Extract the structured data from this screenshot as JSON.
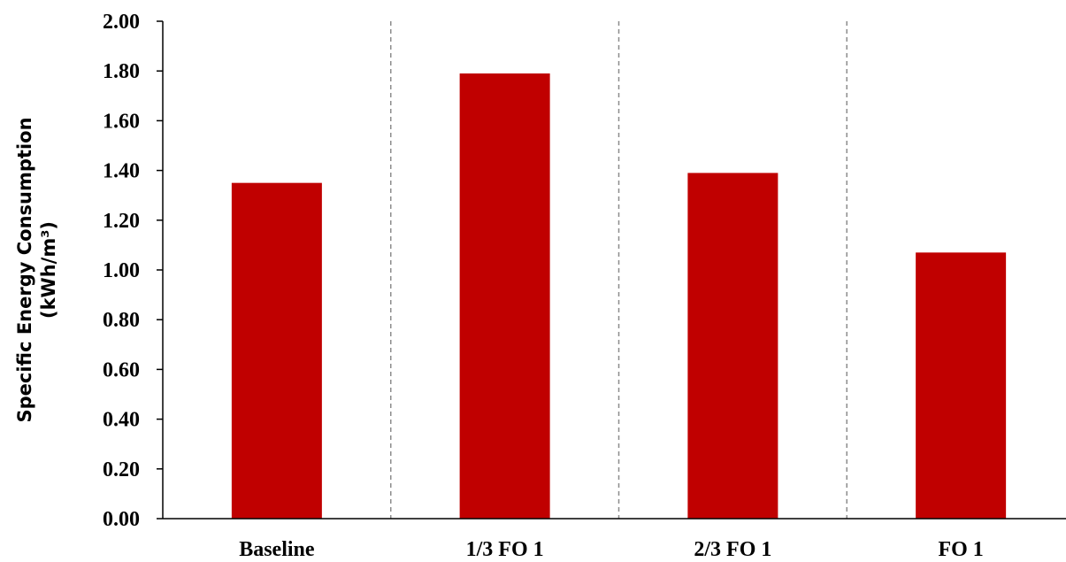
{
  "chart_data": {
    "type": "bar",
    "categories": [
      "Baseline",
      "1/3 FO 1",
      "2/3 FO 1",
      "FO 1"
    ],
    "values": [
      1.35,
      1.79,
      1.39,
      1.07
    ],
    "xlabel": "",
    "ylabel_line1": "Specific Energy Consumption",
    "ylabel_line2": "(kWh/m³)",
    "ylim": [
      0,
      2.0
    ],
    "ytick_step": 0.2,
    "ytick_labels": [
      "0.00",
      "0.20",
      "0.40",
      "0.60",
      "0.80",
      "1.00",
      "1.20",
      "1.40",
      "1.60",
      "1.80",
      "2.00"
    ],
    "grid": false,
    "category_separators": "dashed vertical lines",
    "legend": "none"
  },
  "colors": {
    "bar": "#c00000",
    "axis": "#000000",
    "separator": "#8c8c8c"
  }
}
